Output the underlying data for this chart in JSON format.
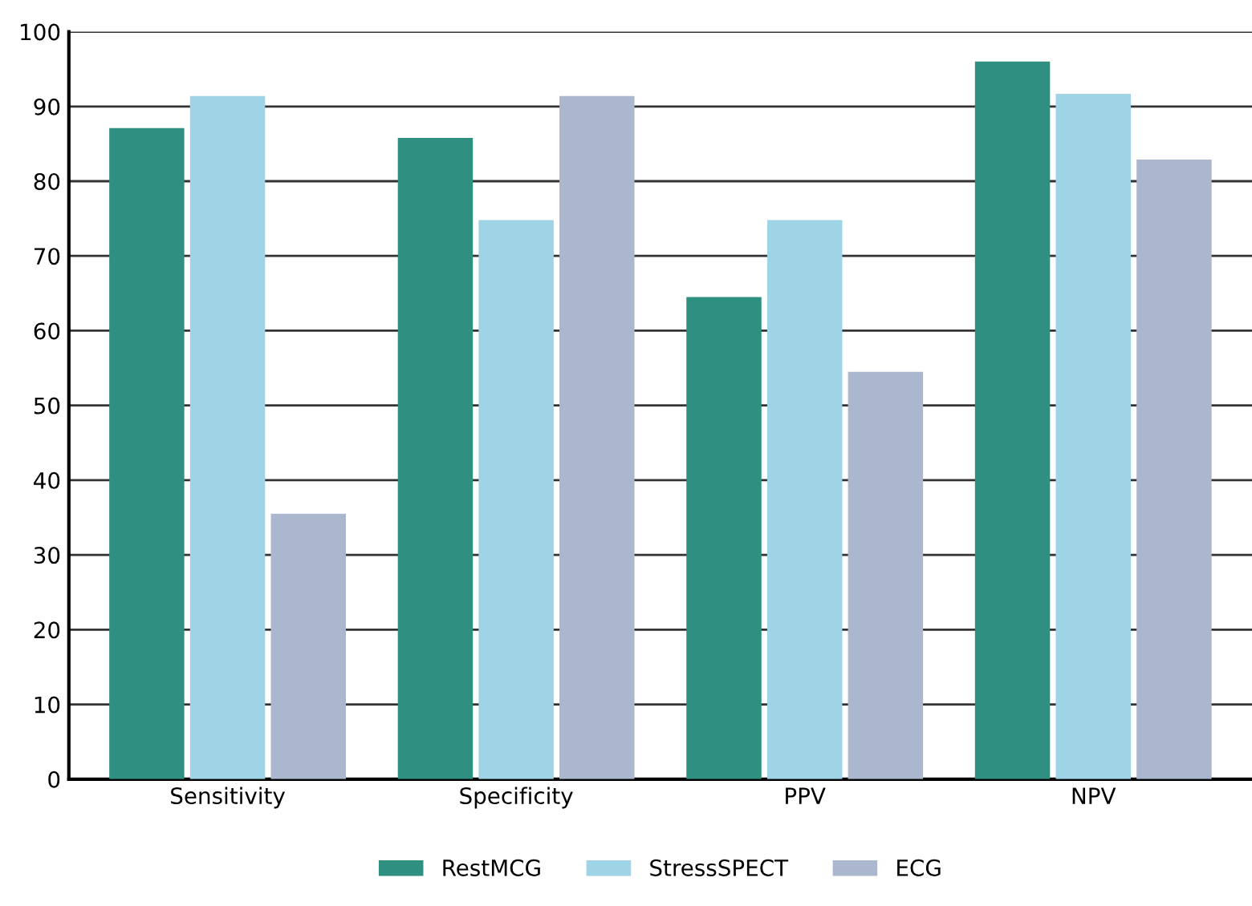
{
  "chart_data": {
    "type": "bar",
    "categories": [
      "Sensitivity",
      "Specificity",
      "PPV",
      "NPV"
    ],
    "series": [
      {
        "name": "RestMCG",
        "color": "#2f8f80",
        "values": [
          87.1,
          85.8,
          64.5,
          96.0
        ]
      },
      {
        "name": "StressSPECT",
        "color": "#9fd3e6",
        "values": [
          91.4,
          74.8,
          74.8,
          91.7
        ]
      },
      {
        "name": "ECG",
        "color": "#aab7cf",
        "values": [
          35.5,
          91.4,
          54.5,
          82.9
        ]
      }
    ],
    "ylim": [
      0,
      100
    ],
    "yticks": [
      0,
      10,
      20,
      30,
      40,
      50,
      60,
      70,
      80,
      90,
      100
    ],
    "grid": "y",
    "legend": "bottom"
  }
}
